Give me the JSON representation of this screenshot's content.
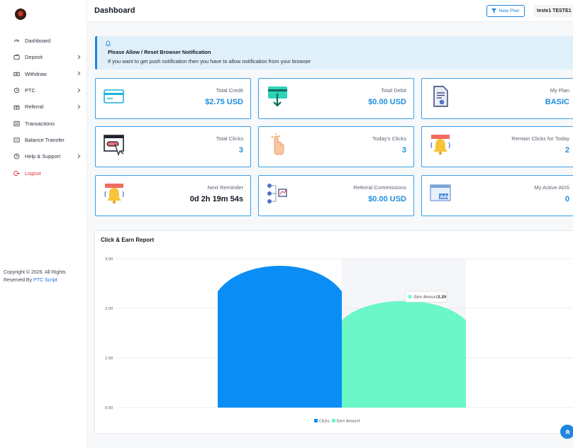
{
  "sidebar": {
    "items": [
      {
        "label": "Dashboard",
        "icon": "gauge-icon",
        "has_chevron": false
      },
      {
        "label": "Deposit",
        "icon": "wallet-icon",
        "has_chevron": true
      },
      {
        "label": "Withdraw",
        "icon": "cash-icon",
        "has_chevron": true
      },
      {
        "label": "PTC",
        "icon": "cursor-icon",
        "has_chevron": true
      },
      {
        "label": "Referral",
        "icon": "gift-icon",
        "has_chevron": true
      },
      {
        "label": "Transactions",
        "icon": "list-icon",
        "has_chevron": false
      },
      {
        "label": "Balance Transfer",
        "icon": "transfer-icon",
        "has_chevron": false
      },
      {
        "label": "Help & Support",
        "icon": "help-icon",
        "has_chevron": true
      },
      {
        "label": "Logout",
        "icon": "logout-icon",
        "has_chevron": false
      }
    ],
    "copyright_text": "Copyright © 2026. All Rights Reserved By ",
    "copyright_link": "PTC Script"
  },
  "header": {
    "title": "Dashboard",
    "new_plan_label": "New Plan",
    "user_name": "teste1 TESTE1"
  },
  "alert": {
    "title": "Please Allow / Reset Browser Notification",
    "text": "If you want to get push notification then you have to allow notification from your browser"
  },
  "cards": [
    {
      "label": "Total Credit",
      "value": "$2.75 USD",
      "icon": "credit-card-icon"
    },
    {
      "label": "Total Debit",
      "value": "$0.00 USD",
      "icon": "debit-card-icon"
    },
    {
      "label": "My Plan",
      "value": "BASIC",
      "icon": "document-icon"
    },
    {
      "label": "Total Clicks",
      "value": "3",
      "icon": "click-window-icon"
    },
    {
      "label": "Today's Clicks",
      "value": "3",
      "icon": "tap-hand-icon"
    },
    {
      "label": "Remain Clicks for Today",
      "value": "2",
      "icon": "alarm-bell-icon"
    },
    {
      "label": "Next Reminder",
      "value": "0d 2h 19m 54s",
      "icon": "reminder-bell-icon"
    },
    {
      "label": "Referral Commissions",
      "value": "$0.00 USD",
      "icon": "referral-network-icon"
    },
    {
      "label": "My Active ADS",
      "value": "0",
      "icon": "ads-icon"
    }
  ],
  "colors": {
    "accent": "#1f86e0",
    "card_border": "#3aa0e8",
    "clicks": "#0a8ef6",
    "earn": "#6bf7c8",
    "logout": "#e0313b"
  },
  "chart_data": {
    "type": "area",
    "title": "Click & Earn Report",
    "categories": [
      "",
      ""
    ],
    "series": [
      {
        "name": "Clicks",
        "values": [
          3.0,
          0
        ]
      },
      {
        "name": "Earn Amount",
        "values": [
          0,
          2.25
        ]
      }
    ],
    "yticks": [
      "0.00",
      "1.00",
      "2.00",
      "3.00"
    ],
    "ylim": [
      0,
      3
    ],
    "grid": true,
    "legend": "bottom-center",
    "tooltip": {
      "label": "Earn Amount",
      "value": "2.25"
    }
  }
}
